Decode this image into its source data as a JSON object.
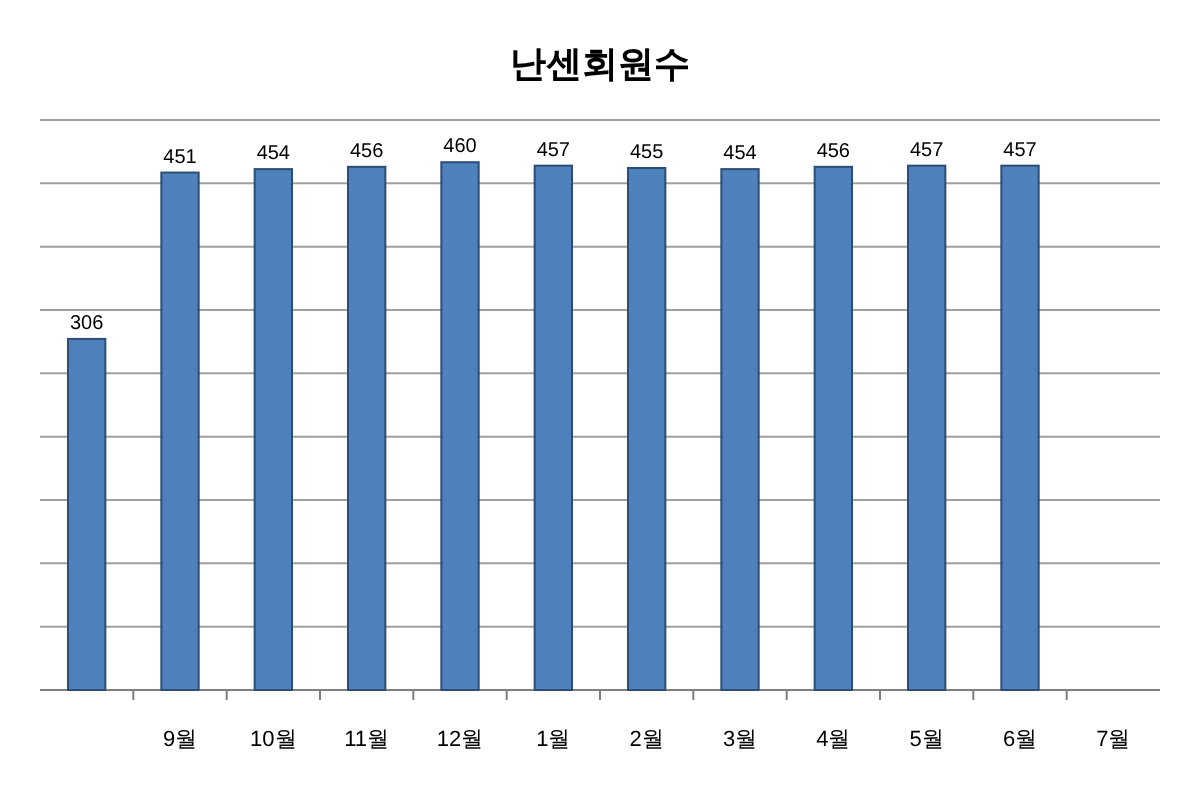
{
  "chart_data": {
    "type": "bar",
    "title": "난센회원수",
    "categories": [
      null,
      "9월",
      "10월",
      "11월",
      "12월",
      "1월",
      "2월",
      "3월",
      "4월",
      "5월",
      "6월",
      "7월"
    ],
    "values": [
      306,
      451,
      454,
      456,
      460,
      457,
      455,
      454,
      456,
      457,
      457,
      null
    ],
    "color": "#4f81bd",
    "data_labels": true,
    "grid": "y"
  }
}
